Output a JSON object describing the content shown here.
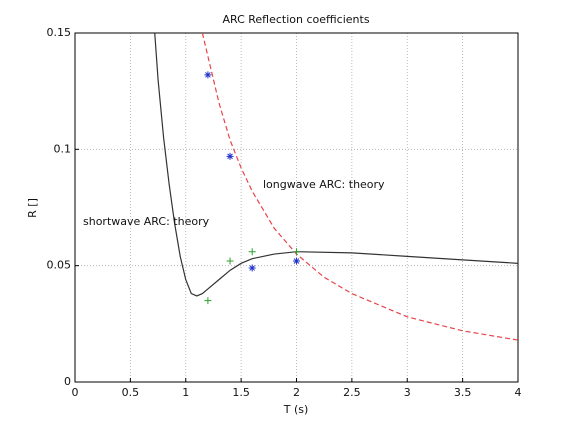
{
  "chart_data": {
    "type": "line",
    "title": "ARC Reflection coefficients",
    "xlabel": "T (s)",
    "ylabel": "R []",
    "xlim": [
      0,
      4
    ],
    "xticks": [
      0,
      0.5,
      1,
      1.5,
      2,
      2.5,
      3,
      3.5,
      4
    ],
    "ylim": [
      0,
      0.15
    ],
    "yticks": [
      0,
      0.05,
      0.1,
      0.15
    ],
    "grid": true,
    "annotations": [
      "longwave ARC: theory",
      "shortwave ARC: theory"
    ],
    "series": [
      {
        "mode": "line",
        "dash": "solid",
        "color": "#333333",
        "x": [
          0.72,
          0.75,
          0.8,
          0.85,
          0.9,
          0.95,
          1.0,
          1.05,
          1.1,
          1.15,
          1.2,
          1.3,
          1.4,
          1.5,
          1.6,
          1.8,
          2.0,
          2.5,
          3.0,
          3.5,
          4.0
        ],
        "values": [
          0.15,
          0.13,
          0.105,
          0.085,
          0.068,
          0.054,
          0.044,
          0.038,
          0.037,
          0.038,
          0.04,
          0.044,
          0.048,
          0.051,
          0.053,
          0.055,
          0.056,
          0.0555,
          0.054,
          0.0525,
          0.051
        ]
      },
      {
        "mode": "line",
        "dash": "dashed",
        "color": "#e8444a",
        "x": [
          1.15,
          1.2,
          1.3,
          1.4,
          1.5,
          1.6,
          1.8,
          2.0,
          2.25,
          2.5,
          3.0,
          3.5,
          4.0
        ],
        "values": [
          0.15,
          0.14,
          0.12,
          0.104,
          0.092,
          0.082,
          0.066,
          0.055,
          0.045,
          0.038,
          0.028,
          0.022,
          0.018
        ]
      },
      {
        "mode": "markers",
        "marker": "plus",
        "color": "#2ca02c",
        "x": [
          1.2,
          1.4,
          1.6,
          2.0
        ],
        "values": [
          0.035,
          0.052,
          0.056,
          0.056
        ]
      },
      {
        "mode": "markers",
        "marker": "star",
        "color": "#2233cc",
        "x": [
          1.2,
          1.4,
          1.6,
          2.0
        ],
        "values": [
          0.132,
          0.097,
          0.049,
          0.052
        ]
      }
    ]
  }
}
